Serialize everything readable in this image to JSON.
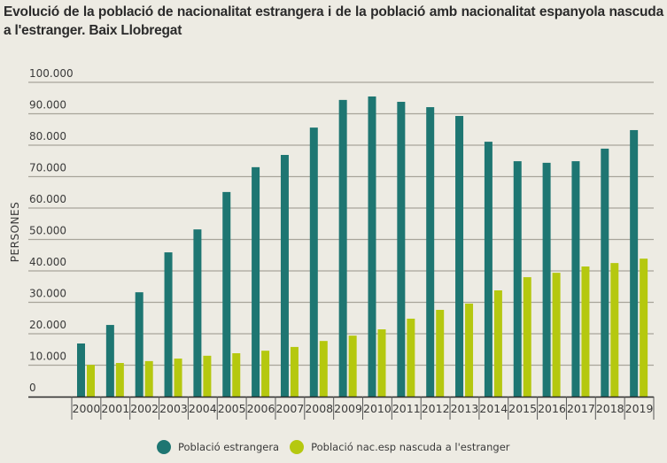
{
  "chart_data": {
    "type": "bar",
    "title": "Evolució de la població de nacionalitat estrangera i de la població amb nacionalitat espanyola nascuda a l'estranger. Baix Llobregat",
    "xlabel": "",
    "ylabel": "PERSONES",
    "ylim": [
      0,
      100000
    ],
    "yticks": [
      0,
      10000,
      20000,
      30000,
      40000,
      50000,
      60000,
      70000,
      80000,
      90000,
      100000
    ],
    "ytick_labels": [
      "0",
      "10.000",
      "20.000",
      "30.000",
      "40.000",
      "50.000",
      "60.000",
      "70.000",
      "80.000",
      "90.000",
      "100.000"
    ],
    "grid": true,
    "legend_position": "bottom",
    "categories": [
      "2000",
      "2001",
      "2002",
      "2003",
      "2004",
      "2005",
      "2006",
      "2007",
      "2008",
      "2009",
      "2010",
      "2011",
      "2012",
      "2013",
      "2014",
      "2015",
      "2016",
      "2017",
      "2018",
      "2019"
    ],
    "series": [
      {
        "name": "Població estrangera",
        "color": "#1e7672",
        "values": [
          16900,
          22800,
          33200,
          45900,
          53200,
          65100,
          73000,
          76900,
          85600,
          94400,
          95500,
          93800,
          92100,
          89300,
          81100,
          74900,
          74400,
          74900,
          78900,
          84800
        ]
      },
      {
        "name": "Població nac.esp nascuda a l'estranger",
        "color": "#b5c80f",
        "values": [
          10100,
          10700,
          11300,
          12100,
          13000,
          13800,
          14600,
          15800,
          17700,
          19400,
          21400,
          24800,
          27600,
          29600,
          33800,
          38000,
          39400,
          41400,
          42500,
          43900
        ]
      }
    ]
  }
}
